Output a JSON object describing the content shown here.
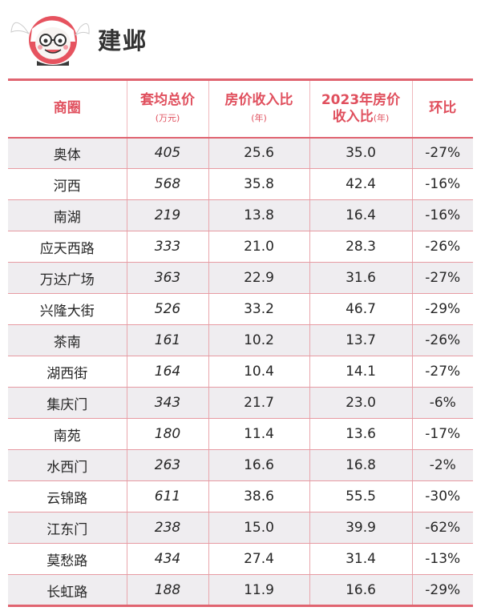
{
  "header": {
    "title": "建邺",
    "logo_icon": "smiling-mascot-avatar-icon"
  },
  "table": {
    "columns": [
      {
        "label": "商圈",
        "unit": ""
      },
      {
        "label": "套均总价",
        "unit": "(万元)"
      },
      {
        "label": "房价收入比",
        "unit": "(年)"
      },
      {
        "label": "2023年房价",
        "label_line2": "收入比",
        "unit": "(年)"
      },
      {
        "label": "环比",
        "unit": ""
      }
    ],
    "rows": [
      {
        "area": "奥体",
        "avg_price": "405",
        "ratio": "25.6",
        "ratio_2023": "35.0",
        "change": "-27%"
      },
      {
        "area": "河西",
        "avg_price": "568",
        "ratio": "35.8",
        "ratio_2023": "42.4",
        "change": "-16%"
      },
      {
        "area": "南湖",
        "avg_price": "219",
        "ratio": "13.8",
        "ratio_2023": "16.4",
        "change": "-16%"
      },
      {
        "area": "应天西路",
        "avg_price": "333",
        "ratio": "21.0",
        "ratio_2023": "28.3",
        "change": "-26%"
      },
      {
        "area": "万达广场",
        "avg_price": "363",
        "ratio": "22.9",
        "ratio_2023": "31.6",
        "change": "-27%"
      },
      {
        "area": "兴隆大街",
        "avg_price": "526",
        "ratio": "33.2",
        "ratio_2023": "46.7",
        "change": "-29%"
      },
      {
        "area": "茶南",
        "avg_price": "161",
        "ratio": "10.2",
        "ratio_2023": "13.7",
        "change": "-26%"
      },
      {
        "area": "湖西街",
        "avg_price": "164",
        "ratio": "10.4",
        "ratio_2023": "14.1",
        "change": "-27%"
      },
      {
        "area": "集庆门",
        "avg_price": "343",
        "ratio": "21.7",
        "ratio_2023": "23.0",
        "change": "-6%"
      },
      {
        "area": "南苑",
        "avg_price": "180",
        "ratio": "11.4",
        "ratio_2023": "13.6",
        "change": "-17%"
      },
      {
        "area": "水西门",
        "avg_price": "263",
        "ratio": "16.6",
        "ratio_2023": "16.8",
        "change": "-2%"
      },
      {
        "area": "云锦路",
        "avg_price": "611",
        "ratio": "38.6",
        "ratio_2023": "55.5",
        "change": "-30%"
      },
      {
        "area": "江东门",
        "avg_price": "238",
        "ratio": "15.0",
        "ratio_2023": "39.9",
        "change": "-62%"
      },
      {
        "area": "莫愁路",
        "avg_price": "434",
        "ratio": "27.4",
        "ratio_2023": "31.4",
        "change": "-13%"
      },
      {
        "area": "长虹路",
        "avg_price": "188",
        "ratio": "11.9",
        "ratio_2023": "16.6",
        "change": "-29%"
      }
    ]
  },
  "colors": {
    "accent": "#e0505e",
    "rule": "#e06470",
    "stripe": "#efedf0"
  }
}
